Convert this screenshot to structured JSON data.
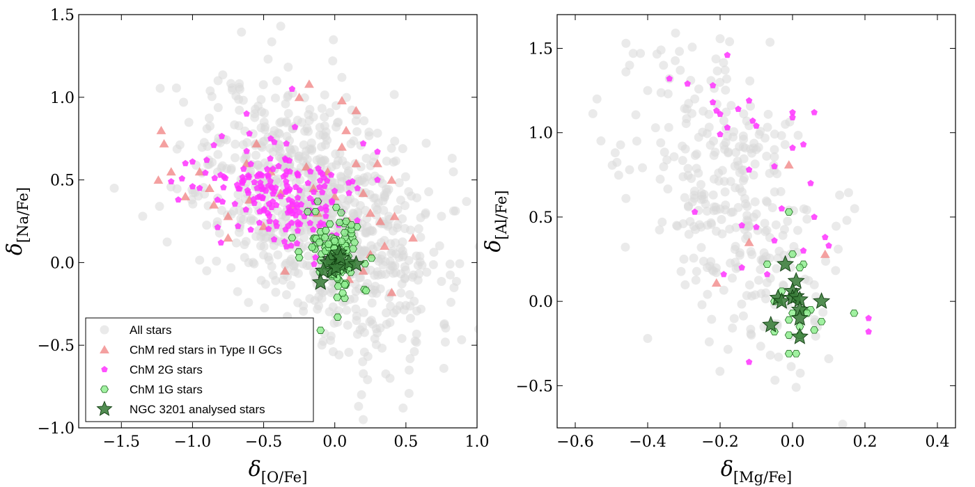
{
  "chart_data": [
    {
      "type": "scatter",
      "panel": "left",
      "xlabel": {
        "symbol": "δ",
        "sub": "[O/Fe]"
      },
      "ylabel": {
        "symbol": "δ",
        "sub": "[Na/Fe]"
      },
      "xlim": [
        -1.8,
        1.0
      ],
      "ylim": [
        -1.0,
        1.5
      ],
      "xticks": [
        -1.5,
        -1.0,
        -0.5,
        0.0,
        0.5,
        1.0
      ],
      "yticks": [
        -1.0,
        -0.5,
        0.0,
        0.5,
        1.0,
        1.5
      ],
      "xtick_labels": [
        "−1.5",
        "−1.0",
        "−0.5",
        "0.0",
        "0.5",
        "1.0"
      ],
      "ytick_labels": [
        "−1.0",
        "−0.5",
        "0.0",
        "0.5",
        "1.0",
        "1.5"
      ],
      "legend_position": "bottom-left",
      "series": [
        {
          "name": "All stars",
          "marker": "circle",
          "color": "#d9d9d9",
          "cloud": {
            "n": 900,
            "cx": -0.1,
            "cy": 0.3,
            "sx": 0.4,
            "sy": 0.35,
            "tilt": -0.45,
            "seed": 11
          },
          "points": [
            [
              -0.38,
              1.43
            ],
            [
              0.05,
              1.12
            ],
            [
              -1.55,
              0.45
            ],
            [
              0.2,
              -0.95
            ],
            [
              0.48,
              -0.88
            ],
            [
              0.75,
              0.28
            ],
            [
              -0.9,
              -0.05
            ],
            [
              -1.35,
              0.28
            ]
          ]
        },
        {
          "name": "ChM red stars in Type II GCs",
          "marker": "triangle",
          "color": "#f08080",
          "points": [
            [
              -1.22,
              0.8
            ],
            [
              -1.2,
              0.72
            ],
            [
              -1.24,
              0.5
            ],
            [
              -1.15,
              0.55
            ],
            [
              -0.85,
              0.35
            ],
            [
              -0.88,
              0.45
            ],
            [
              -0.75,
              0.28
            ],
            [
              -0.62,
              0.6
            ],
            [
              -0.6,
              0.38
            ],
            [
              -0.55,
              0.72
            ],
            [
              -0.5,
              0.22
            ],
            [
              -0.45,
              0.55
            ],
            [
              -0.38,
              0.42
            ],
            [
              -0.3,
              0.35
            ],
            [
              -0.25,
              1.0
            ],
            [
              -0.2,
              0.58
            ],
            [
              -0.18,
              1.08
            ],
            [
              -0.15,
              0.45
            ],
            [
              -0.12,
              0.3
            ],
            [
              -0.05,
              0.55
            ],
            [
              0.0,
              0.4
            ],
            [
              0.05,
              0.7
            ],
            [
              0.05,
              0.98
            ],
            [
              0.08,
              0.8
            ],
            [
              0.1,
              0.25
            ],
            [
              0.15,
              0.92
            ],
            [
              0.15,
              0.6
            ],
            [
              0.2,
              0.42
            ],
            [
              0.25,
              0.3
            ],
            [
              0.3,
              0.6
            ],
            [
              0.32,
              0.25
            ],
            [
              0.35,
              0.1
            ],
            [
              0.4,
              0.5
            ],
            [
              0.4,
              -0.18
            ],
            [
              0.42,
              0.28
            ],
            [
              0.55,
              0.15
            ],
            [
              0.2,
              -0.05
            ],
            [
              -0.35,
              -0.05
            ],
            [
              -0.75,
              0.15
            ],
            [
              -1.05,
              0.4
            ],
            [
              -0.95,
              0.55
            ],
            [
              0.25,
              0.05
            ],
            [
              0.1,
              -0.1
            ]
          ]
        },
        {
          "name": "ChM 2G stars",
          "marker": "pentagon",
          "color": "#ff33ff",
          "cloud": {
            "n": 170,
            "cx": -0.3,
            "cy": 0.38,
            "sx": 0.24,
            "sy": 0.14,
            "tilt": -0.3,
            "seed": 5
          },
          "points": [
            [
              -1.05,
              0.6
            ],
            [
              -1.0,
              0.61
            ],
            [
              -1.15,
              0.49
            ],
            [
              -1.1,
              0.38
            ],
            [
              -0.85,
              0.71
            ],
            [
              -0.8,
              0.12
            ],
            [
              -0.62,
              0.9
            ],
            [
              -0.6,
              0.78
            ],
            [
              -0.3,
              1.05
            ],
            [
              -0.28,
              0.82
            ],
            [
              0.3,
              0.67
            ],
            [
              0.3,
              0.5
            ],
            [
              0.2,
              0.72
            ],
            [
              -0.9,
              0.62
            ],
            [
              -0.95,
              0.45
            ],
            [
              -0.68,
              0.22
            ],
            [
              -0.45,
              0.75
            ],
            [
              0.1,
              0.42
            ]
          ]
        },
        {
          "name": "ChM 1G stars",
          "marker": "hexagon",
          "color": "#90ee90",
          "cloud": {
            "n": 95,
            "cx": 0.02,
            "cy": 0.05,
            "sx": 0.1,
            "sy": 0.12,
            "tilt": -0.2,
            "seed": 3
          },
          "points": [
            [
              -0.1,
              -0.41
            ],
            [
              0.02,
              -0.33
            ],
            [
              -0.12,
              0.37
            ],
            [
              -0.3,
              0.15
            ],
            [
              -0.25,
              0.03
            ],
            [
              0.22,
              -0.17
            ],
            [
              0.08,
              0.25
            ]
          ]
        },
        {
          "name": "NGC 3201 analysed stars",
          "marker": "star",
          "color": "#3a7d3a",
          "points": [
            [
              0.0,
              0.0
            ],
            [
              0.02,
              0.04
            ],
            [
              -0.03,
              0.02
            ],
            [
              0.05,
              -0.02
            ],
            [
              -0.02,
              -0.05
            ],
            [
              0.03,
              0.06
            ],
            [
              -0.05,
              0.0
            ],
            [
              0.01,
              -0.03
            ],
            [
              0.1,
              0.0
            ],
            [
              0.15,
              -0.01
            ],
            [
              -0.08,
              -0.05
            ],
            [
              -0.1,
              -0.12
            ],
            [
              0.04,
              0.03
            ]
          ]
        }
      ],
      "legend": [
        {
          "label": "All stars",
          "marker": "circle",
          "color": "#d9d9d9"
        },
        {
          "label": "ChM red stars in Type II GCs",
          "marker": "triangle",
          "color": "#f08080"
        },
        {
          "label": "ChM 2G stars",
          "marker": "pentagon",
          "color": "#ff33ff"
        },
        {
          "label": "ChM 1G stars",
          "marker": "hexagon",
          "color": "#90ee90"
        },
        {
          "label": "NGC 3201 analysed stars",
          "marker": "star",
          "color": "#3a7d3a"
        }
      ]
    },
    {
      "type": "scatter",
      "panel": "right",
      "xlabel": {
        "symbol": "δ",
        "sub": "[Mg/Fe]"
      },
      "ylabel": {
        "symbol": "δ",
        "sub": "[Al/Fe]"
      },
      "xlim": [
        -0.65,
        0.45
      ],
      "ylim": [
        -0.75,
        1.7
      ],
      "xticks": [
        -0.6,
        -0.4,
        -0.2,
        0.0,
        0.2,
        0.4
      ],
      "yticks": [
        -0.5,
        0.0,
        0.5,
        1.0,
        1.5
      ],
      "xtick_labels": [
        "−0.6",
        "−0.4",
        "−0.2",
        "0.0",
        "0.2",
        "0.4"
      ],
      "ytick_labels": [
        "−0.5",
        "0.0",
        "0.5",
        "1.0",
        "1.5"
      ],
      "series": [
        {
          "name": "All stars",
          "marker": "circle",
          "color": "#d9d9d9",
          "cloud": {
            "n": 320,
            "cx": -0.15,
            "cy": 0.55,
            "sx": 0.13,
            "sy": 0.42,
            "tilt": -0.55,
            "seed": 21
          },
          "points": [
            [
              -0.46,
              1.53
            ],
            [
              -0.44,
              1.47
            ],
            [
              -0.42,
              1.47
            ],
            [
              -0.46,
              1.36
            ],
            [
              -0.45,
              1.4
            ],
            [
              -0.4,
              1.25
            ],
            [
              -0.54,
              1.2
            ],
            [
              -0.43,
              0.95
            ],
            [
              -0.45,
              0.78
            ],
            [
              -0.46,
              0.61
            ],
            [
              -0.36,
              0.47
            ],
            [
              -0.32,
              0.45
            ],
            [
              -0.3,
              0.25
            ],
            [
              -0.26,
              0.76
            ],
            [
              -0.4,
              -0.22
            ],
            [
              -0.23,
              -0.24
            ],
            [
              -0.25,
              -0.02
            ],
            [
              0.01,
              -0.51
            ],
            [
              0.1,
              -0.34
            ],
            [
              0.13,
              0.63
            ],
            [
              0.15,
              0.48
            ],
            [
              -0.05,
              0.9
            ],
            [
              -0.1,
              0.9
            ],
            [
              -0.02,
              1.05
            ],
            [
              -0.34,
              1.32
            ],
            [
              -0.31,
              1.37
            ],
            [
              -0.27,
              1.2
            ]
          ]
        },
        {
          "name": "ChM red stars in Type II GCs",
          "marker": "triangle",
          "color": "#f08080",
          "points": [
            [
              -0.21,
              0.11
            ],
            [
              -0.12,
              0.35
            ],
            [
              -0.01,
              0.81
            ],
            [
              0.09,
              0.28
            ]
          ]
        },
        {
          "name": "ChM 2G stars",
          "marker": "pentagon",
          "color": "#ff33ff",
          "points": [
            [
              -0.34,
              1.32
            ],
            [
              -0.29,
              1.29
            ],
            [
              -0.18,
              1.46
            ],
            [
              -0.22,
              1.28
            ],
            [
              -0.22,
              1.18
            ],
            [
              -0.21,
              1.13
            ],
            [
              -0.2,
              1.11
            ],
            [
              -0.15,
              1.14
            ],
            [
              -0.12,
              1.19
            ],
            [
              -0.11,
              1.07
            ],
            [
              -0.1,
              1.04
            ],
            [
              -0.18,
              1.03
            ],
            [
              -0.2,
              0.99
            ],
            [
              0.0,
              1.12
            ],
            [
              0.0,
              1.09
            ],
            [
              0.06,
              1.12
            ],
            [
              0.0,
              0.91
            ],
            [
              -0.05,
              0.8
            ],
            [
              -0.12,
              0.78
            ],
            [
              0.05,
              0.7
            ],
            [
              0.03,
              0.93
            ],
            [
              -0.27,
              0.53
            ],
            [
              -0.03,
              0.55
            ],
            [
              0.06,
              0.5
            ],
            [
              -0.1,
              0.44
            ],
            [
              -0.14,
              0.45
            ],
            [
              -0.14,
              0.2
            ],
            [
              -0.19,
              0.16
            ],
            [
              -0.07,
              0.16
            ],
            [
              0.09,
              0.38
            ],
            [
              0.1,
              0.33
            ],
            [
              0.21,
              -0.1
            ],
            [
              0.21,
              -0.18
            ],
            [
              -0.12,
              -0.36
            ],
            [
              -0.05,
              0.36
            ],
            [
              0.03,
              0.3
            ]
          ]
        },
        {
          "name": "ChM 1G stars",
          "marker": "hexagon",
          "color": "#90ee90",
          "points": [
            [
              -0.01,
              0.53
            ],
            [
              -0.07,
              0.22
            ],
            [
              0.0,
              0.28
            ],
            [
              0.03,
              0.22
            ],
            [
              0.02,
              0.2
            ],
            [
              -0.03,
              0.06
            ],
            [
              -0.05,
              0.0
            ],
            [
              0.0,
              -0.07
            ],
            [
              0.03,
              -0.05
            ],
            [
              0.05,
              -0.05
            ],
            [
              -0.01,
              -0.11
            ],
            [
              0.02,
              -0.15
            ],
            [
              -0.05,
              -0.18
            ],
            [
              0.06,
              -0.17
            ],
            [
              0.08,
              -0.12
            ],
            [
              -0.01,
              -0.2
            ],
            [
              0.02,
              -0.2
            ],
            [
              -0.01,
              -0.31
            ],
            [
              0.01,
              -0.31
            ],
            [
              0.17,
              -0.07
            ],
            [
              0.04,
              -0.07
            ],
            [
              0.01,
              0.01
            ]
          ]
        },
        {
          "name": "NGC 3201 analysed stars",
          "marker": "star",
          "color": "#3a7d3a",
          "points": [
            [
              -0.02,
              0.22
            ],
            [
              0.01,
              0.12
            ],
            [
              0.0,
              0.06
            ],
            [
              -0.04,
              0.02
            ],
            [
              -0.03,
              0.0
            ],
            [
              0.0,
              0.02
            ],
            [
              0.01,
              0.03
            ],
            [
              0.02,
              0.01
            ],
            [
              0.08,
              0.0
            ],
            [
              0.02,
              -0.05
            ],
            [
              0.02,
              -0.1
            ],
            [
              -0.06,
              -0.14
            ],
            [
              0.02,
              -0.21
            ]
          ]
        }
      ]
    }
  ]
}
